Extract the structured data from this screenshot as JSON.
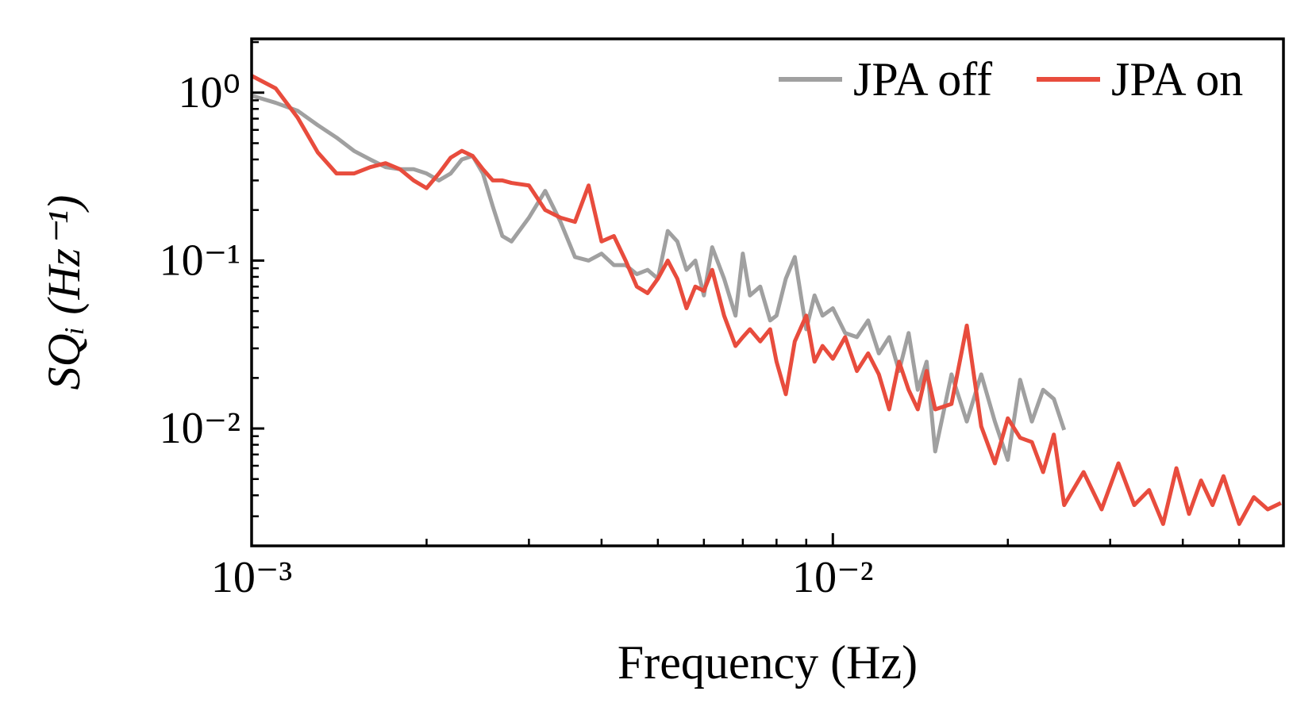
{
  "chart_data": {
    "type": "line",
    "xlabel": "Frequency (Hz)",
    "ylabel": "SQᵢ (Hz⁻¹)",
    "xscale": "log",
    "yscale": "log",
    "legend": "upper right",
    "xlim": [
      0.001,
      0.0596
    ],
    "ylim": [
      0.002,
      2.09
    ],
    "xticks": [
      {
        "value": 0.001,
        "label": "10⁻³"
      },
      {
        "value": 0.01,
        "label": "10⁻²"
      }
    ],
    "xticks_minor": [
      0.002,
      0.003,
      0.004,
      0.005,
      0.006,
      0.007,
      0.008,
      0.009,
      0.02,
      0.03,
      0.04,
      0.05
    ],
    "yticks": [
      {
        "value": 0.01,
        "label": "10⁻²"
      },
      {
        "value": 0.1,
        "label": "10⁻¹"
      },
      {
        "value": 1,
        "label": "10⁰"
      }
    ],
    "yticks_minor": [
      0.003,
      0.004,
      0.005,
      0.006,
      0.007,
      0.008,
      0.009,
      0.02,
      0.03,
      0.04,
      0.05,
      0.06,
      0.07,
      0.08,
      0.09,
      0.2,
      0.3,
      0.4,
      0.5,
      0.6,
      0.7,
      0.8,
      0.9,
      2
    ],
    "x": [
      0.001,
      0.0011,
      0.0012,
      0.0013,
      0.0014,
      0.0015,
      0.0016,
      0.0017,
      0.0018,
      0.0019,
      0.002,
      0.0021,
      0.0022,
      0.0023,
      0.0024,
      0.0025,
      0.0026,
      0.0027,
      0.0028,
      0.003,
      0.0032,
      0.0034,
      0.0036,
      0.0038,
      0.004,
      0.0042,
      0.0044,
      0.0046,
      0.0048,
      0.005,
      0.0052,
      0.0054,
      0.0056,
      0.0058,
      0.006,
      0.0062,
      0.0065,
      0.0068,
      0.007,
      0.0072,
      0.0075,
      0.0078,
      0.008,
      0.0083,
      0.0086,
      0.009,
      0.0093,
      0.0096,
      0.01,
      0.0105,
      0.011,
      0.0115,
      0.012,
      0.0125,
      0.013,
      0.0135,
      0.014,
      0.0145,
      0.015,
      0.016,
      0.017,
      0.018,
      0.019,
      0.02,
      0.021,
      0.022,
      0.023,
      0.024,
      0.025,
      0.027,
      0.029,
      0.031,
      0.033,
      0.035,
      0.037,
      0.039,
      0.041,
      0.043,
      0.045,
      0.047,
      0.05,
      0.053,
      0.056,
      0.059
    ],
    "series": [
      {
        "name": "JPA off",
        "color": "#a0a0a0",
        "values": [
          0.96,
          0.87,
          0.78,
          0.64,
          0.54,
          0.45,
          0.4,
          0.36,
          0.35,
          0.35,
          0.33,
          0.3,
          0.33,
          0.4,
          0.42,
          0.33,
          0.21,
          0.14,
          0.13,
          0.18,
          0.26,
          0.17,
          0.105,
          0.1,
          0.11,
          0.094,
          0.094,
          0.083,
          0.088,
          0.078,
          0.15,
          0.13,
          0.088,
          0.1,
          0.062,
          0.12,
          0.078,
          0.047,
          0.11,
          0.062,
          0.07,
          0.044,
          0.047,
          0.078,
          0.105,
          0.039,
          0.062,
          0.047,
          0.052,
          0.037,
          0.035,
          0.044,
          0.028,
          0.035,
          0.022,
          0.037,
          0.017,
          0.025,
          0.0073,
          0.021,
          0.011,
          0.021,
          0.011,
          0.0065,
          0.0195,
          0.011,
          0.017,
          0.015,
          0.0098,
          null,
          null,
          null,
          null,
          null,
          null,
          null,
          null,
          null,
          null,
          null,
          null,
          null,
          null,
          null
        ]
      },
      {
        "name": "JPA on",
        "color": "#e84c3d",
        "values": [
          1.26,
          1.06,
          0.71,
          0.44,
          0.33,
          0.33,
          0.36,
          0.38,
          0.35,
          0.3,
          0.27,
          0.33,
          0.41,
          0.45,
          0.42,
          0.35,
          0.3,
          0.3,
          0.29,
          0.28,
          0.2,
          0.18,
          0.17,
          0.28,
          0.13,
          0.14,
          0.1,
          0.07,
          0.064,
          0.078,
          0.1,
          0.078,
          0.052,
          0.07,
          0.066,
          0.088,
          0.047,
          0.031,
          0.035,
          0.039,
          0.033,
          0.039,
          0.025,
          0.016,
          0.033,
          0.047,
          0.025,
          0.031,
          0.026,
          0.035,
          0.022,
          0.028,
          0.021,
          0.013,
          0.025,
          0.017,
          0.013,
          0.022,
          0.013,
          0.014,
          0.041,
          0.0103,
          0.0062,
          0.0115,
          0.0088,
          0.0083,
          0.0055,
          0.0092,
          0.0035,
          0.0055,
          0.0033,
          0.0062,
          0.0035,
          0.0043,
          0.0027,
          0.0058,
          0.0031,
          0.0049,
          0.0035,
          0.0052,
          0.0027,
          0.0039,
          0.0033,
          0.0036
        ]
      }
    ]
  }
}
